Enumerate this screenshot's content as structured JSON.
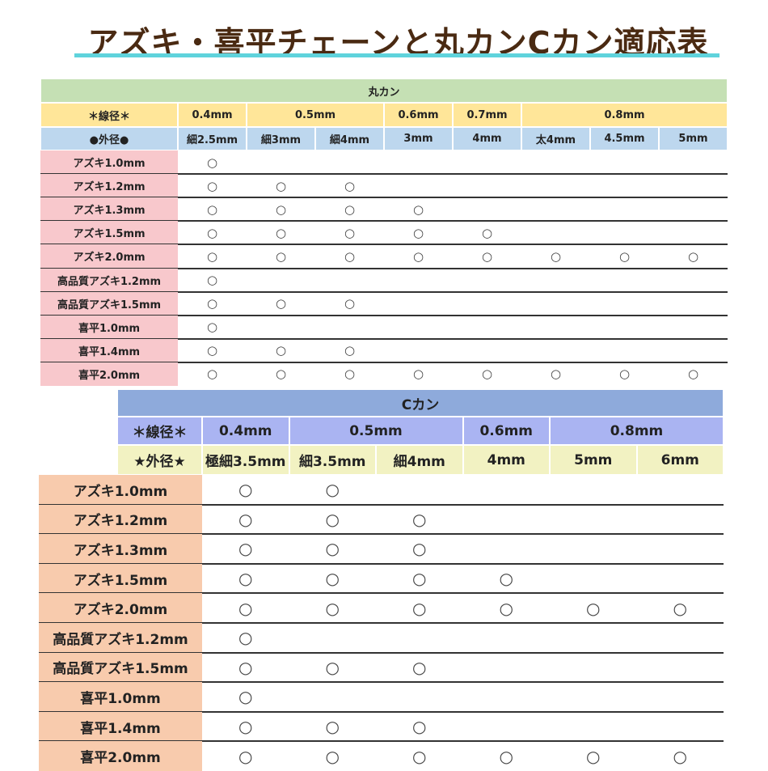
{
  "title": "アズキ・喜平チェーンと丸カンCカン適応表",
  "marucan": {
    "header": "丸カン",
    "wire_label": "＊線径＊",
    "outer_label": "●外径●",
    "wire": [
      {
        "label": "0.4mm",
        "span": 1
      },
      {
        "label": "0.5mm",
        "span": 2
      },
      {
        "label": "0.6mm",
        "span": 1
      },
      {
        "label": "0.7mm",
        "span": 1
      },
      {
        "label": "0.8mm",
        "span": 3
      }
    ],
    "outer": [
      "細2.5mm",
      "細3mm",
      "細4mm",
      "3mm",
      "4mm",
      "太4mm",
      "4.5mm",
      "5mm"
    ],
    "rows": [
      {
        "label": "アズキ1.0mm",
        "cells": [
          "○",
          "",
          "",
          "",
          "",
          "",
          "",
          ""
        ]
      },
      {
        "label": "アズキ1.2mm",
        "cells": [
          "○",
          "○",
          "○",
          "",
          "",
          "",
          "",
          ""
        ]
      },
      {
        "label": "アズキ1.3mm",
        "cells": [
          "○",
          "○",
          "○",
          "○",
          "",
          "",
          "",
          ""
        ]
      },
      {
        "label": "アズキ1.5mm",
        "cells": [
          "○",
          "○",
          "○",
          "○",
          "○",
          "",
          "",
          ""
        ]
      },
      {
        "label": "アズキ2.0mm",
        "cells": [
          "○",
          "○",
          "○",
          "○",
          "○",
          "○",
          "○",
          "○"
        ]
      },
      {
        "label": "高品質アズキ1.2mm",
        "cells": [
          "○",
          "",
          "",
          "",
          "",
          "",
          "",
          ""
        ]
      },
      {
        "label": "高品質アズキ1.5mm",
        "cells": [
          "○",
          "○",
          "○",
          "",
          "",
          "",
          "",
          ""
        ]
      },
      {
        "label": "喜平1.0mm",
        "cells": [
          "○",
          "",
          "",
          "",
          "",
          "",
          "",
          ""
        ]
      },
      {
        "label": "喜平1.4mm",
        "cells": [
          "○",
          "○",
          "○",
          "",
          "",
          "",
          "",
          ""
        ]
      },
      {
        "label": "喜平2.0mm",
        "cells": [
          "○",
          "○",
          "○",
          "○",
          "○",
          "○",
          "○",
          "○"
        ]
      }
    ]
  },
  "ccan": {
    "header": "Cカン",
    "wire_label": "＊線径＊",
    "outer_label": "★外径★",
    "wire": [
      {
        "label": "0.4mm",
        "span": 1
      },
      {
        "label": "0.5mm",
        "span": 2
      },
      {
        "label": "0.6mm",
        "span": 1
      },
      {
        "label": "0.8mm",
        "span": 2
      }
    ],
    "outer": [
      "極細3.5mm",
      "細3.5mm",
      "細4mm",
      "4mm",
      "5mm",
      "6mm"
    ],
    "rows": [
      {
        "label": "アズキ1.0mm",
        "cells": [
          "○",
          "○",
          "",
          "",
          "",
          ""
        ]
      },
      {
        "label": "アズキ1.2mm",
        "cells": [
          "○",
          "○",
          "○",
          "",
          "",
          ""
        ]
      },
      {
        "label": "アズキ1.3mm",
        "cells": [
          "○",
          "○",
          "○",
          "",
          "",
          ""
        ]
      },
      {
        "label": "アズキ1.5mm",
        "cells": [
          "○",
          "○",
          "○",
          "○",
          "",
          ""
        ]
      },
      {
        "label": "アズキ2.0mm",
        "cells": [
          "○",
          "○",
          "○",
          "○",
          "○",
          "○"
        ]
      },
      {
        "label": "高品質アズキ1.2mm",
        "cells": [
          "○",
          "",
          "",
          "",
          "",
          ""
        ]
      },
      {
        "label": "高品質アズキ1.5mm",
        "cells": [
          "○",
          "○",
          "○",
          "",
          "",
          ""
        ]
      },
      {
        "label": "喜平1.0mm",
        "cells": [
          "○",
          "",
          "",
          "",
          "",
          ""
        ]
      },
      {
        "label": "喜平1.4mm",
        "cells": [
          "○",
          "○",
          "○",
          "",
          "",
          ""
        ]
      },
      {
        "label": "喜平2.0mm",
        "cells": [
          "○",
          "○",
          "○",
          "○",
          "○",
          "○"
        ]
      }
    ]
  },
  "colors": {
    "title": "#4a2a12",
    "underline": "#5fd3dc",
    "maru_header": "#c5e0b4",
    "maru_wire": "#ffe699",
    "maru_outer": "#bdd7ee",
    "maru_row": "#f8c8cc",
    "c_header": "#8eaadb",
    "c_wire": "#aab4f2",
    "c_outer": "#f2f2c2",
    "c_row": "#f8cbad"
  }
}
